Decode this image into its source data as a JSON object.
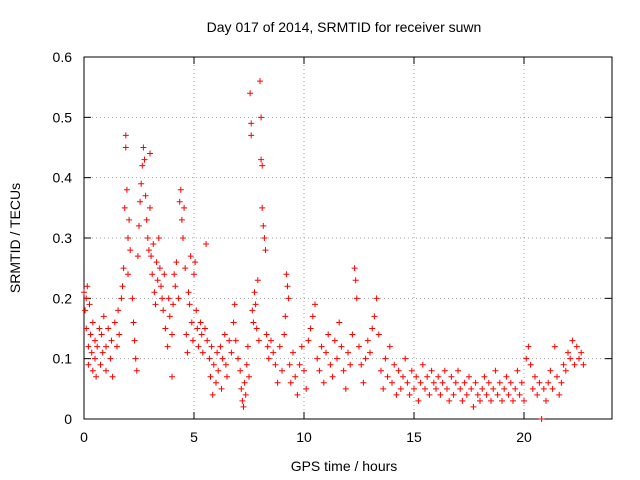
{
  "chart_data": {
    "type": "scatter",
    "title": "Day 017 of 2014, SRMTID for receiver suwn",
    "xlabel": "GPS time / hours",
    "ylabel": "SRMTID / TECUs",
    "xlim": [
      0,
      24
    ],
    "ylim": [
      0,
      0.6
    ],
    "x_ticks": [
      0,
      5,
      10,
      15,
      20
    ],
    "y_ticks": [
      0,
      0.1,
      0.2,
      0.3,
      0.4,
      0.5,
      0.6
    ],
    "x_tick_labels": [
      "0",
      "5",
      "10",
      "15",
      "20"
    ],
    "y_tick_labels": [
      "0",
      "0.1",
      "0.2",
      "0.3",
      "0.4",
      "0.5",
      "0.6"
    ],
    "grid": true,
    "marker": "+",
    "color": "#ff0000",
    "series": [
      {
        "name": "SRMTID",
        "points": [
          [
            0.0,
            0.21
          ],
          [
            0.05,
            0.18
          ],
          [
            0.1,
            0.2
          ],
          [
            0.1,
            0.15
          ],
          [
            0.15,
            0.22
          ],
          [
            0.2,
            0.12
          ],
          [
            0.2,
            0.09
          ],
          [
            0.25,
            0.19
          ],
          [
            0.3,
            0.14
          ],
          [
            0.35,
            0.11
          ],
          [
            0.4,
            0.08
          ],
          [
            0.4,
            0.16
          ],
          [
            0.5,
            0.13
          ],
          [
            0.5,
            0.1
          ],
          [
            0.55,
            0.07
          ],
          [
            0.6,
            0.12
          ],
          [
            0.7,
            0.15
          ],
          [
            0.75,
            0.09
          ],
          [
            0.8,
            0.14
          ],
          [
            0.85,
            0.11
          ],
          [
            0.9,
            0.17
          ],
          [
            1.0,
            0.12
          ],
          [
            1.0,
            0.08
          ],
          [
            1.1,
            0.15
          ],
          [
            1.2,
            0.1
          ],
          [
            1.25,
            0.13
          ],
          [
            1.3,
            0.07
          ],
          [
            1.4,
            0.16
          ],
          [
            1.5,
            0.12
          ],
          [
            1.55,
            0.18
          ],
          [
            1.6,
            0.14
          ],
          [
            1.7,
            0.2
          ],
          [
            1.75,
            0.22
          ],
          [
            1.8,
            0.25
          ],
          [
            1.85,
            0.35
          ],
          [
            1.9,
            0.47
          ],
          [
            1.9,
            0.45
          ],
          [
            1.95,
            0.38
          ],
          [
            2.0,
            0.3
          ],
          [
            2.0,
            0.24
          ],
          [
            2.05,
            0.33
          ],
          [
            2.1,
            0.28
          ],
          [
            2.2,
            0.2
          ],
          [
            2.25,
            0.16
          ],
          [
            2.3,
            0.13
          ],
          [
            2.35,
            0.1
          ],
          [
            2.4,
            0.08
          ],
          [
            2.45,
            0.27
          ],
          [
            2.5,
            0.32
          ],
          [
            2.55,
            0.36
          ],
          [
            2.6,
            0.39
          ],
          [
            2.65,
            0.42
          ],
          [
            2.7,
            0.45
          ],
          [
            2.75,
            0.43
          ],
          [
            2.8,
            0.37
          ],
          [
            2.85,
            0.33
          ],
          [
            2.9,
            0.3
          ],
          [
            2.95,
            0.28
          ],
          [
            3.0,
            0.44
          ],
          [
            3.0,
            0.35
          ],
          [
            3.05,
            0.27
          ],
          [
            3.1,
            0.24
          ],
          [
            3.15,
            0.29
          ],
          [
            3.2,
            0.21
          ],
          [
            3.25,
            0.19
          ],
          [
            3.3,
            0.26
          ],
          [
            3.35,
            0.23
          ],
          [
            3.4,
            0.3
          ],
          [
            3.45,
            0.25
          ],
          [
            3.5,
            0.22
          ],
          [
            3.55,
            0.2
          ],
          [
            3.6,
            0.18
          ],
          [
            3.65,
            0.24
          ],
          [
            3.7,
            0.15
          ],
          [
            3.8,
            0.12
          ],
          [
            3.85,
            0.2
          ],
          [
            3.9,
            0.17
          ],
          [
            4.0,
            0.14
          ],
          [
            4.0,
            0.07
          ],
          [
            4.05,
            0.19
          ],
          [
            4.1,
            0.24
          ],
          [
            4.15,
            0.22
          ],
          [
            4.2,
            0.26
          ],
          [
            4.3,
            0.2
          ],
          [
            4.35,
            0.36
          ],
          [
            4.4,
            0.38
          ],
          [
            4.45,
            0.33
          ],
          [
            4.5,
            0.3
          ],
          [
            4.55,
            0.35
          ],
          [
            4.6,
            0.25
          ],
          [
            4.65,
            0.14
          ],
          [
            4.7,
            0.11
          ],
          [
            4.75,
            0.21
          ],
          [
            4.8,
            0.19
          ],
          [
            4.85,
            0.27
          ],
          [
            4.9,
            0.16
          ],
          [
            4.95,
            0.13
          ],
          [
            5.0,
            0.24
          ],
          [
            5.05,
            0.26
          ],
          [
            5.1,
            0.18
          ],
          [
            5.15,
            0.15
          ],
          [
            5.2,
            0.12
          ],
          [
            5.3,
            0.16
          ],
          [
            5.35,
            0.14
          ],
          [
            5.4,
            0.11
          ],
          [
            5.5,
            0.15
          ],
          [
            5.55,
            0.29
          ],
          [
            5.6,
            0.13
          ],
          [
            5.7,
            0.1
          ],
          [
            5.75,
            0.07
          ],
          [
            5.8,
            0.12
          ],
          [
            5.85,
            0.04
          ],
          [
            5.9,
            0.09
          ],
          [
            6.0,
            0.06
          ],
          [
            6.05,
            0.11
          ],
          [
            6.1,
            0.08
          ],
          [
            6.2,
            0.12
          ],
          [
            6.25,
            0.05
          ],
          [
            6.3,
            0.1
          ],
          [
            6.4,
            0.14
          ],
          [
            6.45,
            0.09
          ],
          [
            6.5,
            0.07
          ],
          [
            6.6,
            0.13
          ],
          [
            6.7,
            0.11
          ],
          [
            6.8,
            0.16
          ],
          [
            6.85,
            0.19
          ],
          [
            6.9,
            0.13
          ],
          [
            7.0,
            0.1
          ],
          [
            7.1,
            0.08
          ],
          [
            7.15,
            0.05
          ],
          [
            7.2,
            0.03
          ],
          [
            7.25,
            0.02
          ],
          [
            7.3,
            0.06
          ],
          [
            7.35,
            0.04
          ],
          [
            7.4,
            0.09
          ],
          [
            7.45,
            0.12
          ],
          [
            7.5,
            0.07
          ],
          [
            7.55,
            0.54
          ],
          [
            7.6,
            0.49
          ],
          [
            7.6,
            0.47
          ],
          [
            7.65,
            0.18
          ],
          [
            7.7,
            0.16
          ],
          [
            7.75,
            0.21
          ],
          [
            7.8,
            0.19
          ],
          [
            7.85,
            0.15
          ],
          [
            7.9,
            0.23
          ],
          [
            7.95,
            0.13
          ],
          [
            8.0,
            0.56
          ],
          [
            8.05,
            0.5
          ],
          [
            8.05,
            0.43
          ],
          [
            8.1,
            0.42
          ],
          [
            8.1,
            0.35
          ],
          [
            8.15,
            0.32
          ],
          [
            8.2,
            0.3
          ],
          [
            8.25,
            0.28
          ],
          [
            8.3,
            0.14
          ],
          [
            8.35,
            0.12
          ],
          [
            8.4,
            0.1
          ],
          [
            8.5,
            0.13
          ],
          [
            8.6,
            0.11
          ],
          [
            8.7,
            0.09
          ],
          [
            8.8,
            0.06
          ],
          [
            8.9,
            0.12
          ],
          [
            9.0,
            0.08
          ],
          [
            9.1,
            0.14
          ],
          [
            9.15,
            0.17
          ],
          [
            9.2,
            0.24
          ],
          [
            9.25,
            0.22
          ],
          [
            9.3,
            0.2
          ],
          [
            9.35,
            0.09
          ],
          [
            9.4,
            0.06
          ],
          [
            9.5,
            0.11
          ],
          [
            9.6,
            0.07
          ],
          [
            9.7,
            0.04
          ],
          [
            9.8,
            0.09
          ],
          [
            9.9,
            0.12
          ],
          [
            10.0,
            0.08
          ],
          [
            10.1,
            0.05
          ],
          [
            10.2,
            0.13
          ],
          [
            10.3,
            0.15
          ],
          [
            10.4,
            0.17
          ],
          [
            10.5,
            0.19
          ],
          [
            10.6,
            0.1
          ],
          [
            10.7,
            0.08
          ],
          [
            10.8,
            0.12
          ],
          [
            10.9,
            0.06
          ],
          [
            11.0,
            0.11
          ],
          [
            11.1,
            0.14
          ],
          [
            11.2,
            0.09
          ],
          [
            11.3,
            0.07
          ],
          [
            11.4,
            0.13
          ],
          [
            11.5,
            0.1
          ],
          [
            11.6,
            0.16
          ],
          [
            11.7,
            0.12
          ],
          [
            11.8,
            0.08
          ],
          [
            11.9,
            0.05
          ],
          [
            12.0,
            0.11
          ],
          [
            12.1,
            0.09
          ],
          [
            12.2,
            0.14
          ],
          [
            12.3,
            0.25
          ],
          [
            12.35,
            0.23
          ],
          [
            12.4,
            0.2
          ],
          [
            12.5,
            0.12
          ],
          [
            12.6,
            0.09
          ],
          [
            12.7,
            0.06
          ],
          [
            12.8,
            0.1
          ],
          [
            12.9,
            0.13
          ],
          [
            13.0,
            0.11
          ],
          [
            13.1,
            0.15
          ],
          [
            13.2,
            0.17
          ],
          [
            13.3,
            0.2
          ],
          [
            13.4,
            0.14
          ],
          [
            13.5,
            0.08
          ],
          [
            13.6,
            0.05
          ],
          [
            13.7,
            0.1
          ],
          [
            13.8,
            0.07
          ],
          [
            13.9,
            0.12
          ],
          [
            14.0,
            0.06
          ],
          [
            14.1,
            0.09
          ],
          [
            14.2,
            0.04
          ],
          [
            14.3,
            0.08
          ],
          [
            14.4,
            0.05
          ],
          [
            14.5,
            0.07
          ],
          [
            14.6,
            0.1
          ],
          [
            14.7,
            0.06
          ],
          [
            14.8,
            0.04
          ],
          [
            14.9,
            0.08
          ],
          [
            15.0,
            0.05
          ],
          [
            15.1,
            0.07
          ],
          [
            15.2,
            0.03
          ],
          [
            15.3,
            0.06
          ],
          [
            15.4,
            0.09
          ],
          [
            15.5,
            0.05
          ],
          [
            15.6,
            0.07
          ],
          [
            15.7,
            0.04
          ],
          [
            15.8,
            0.08
          ],
          [
            15.9,
            0.06
          ],
          [
            16.0,
            0.05
          ],
          [
            16.1,
            0.07
          ],
          [
            16.2,
            0.04
          ],
          [
            16.3,
            0.06
          ],
          [
            16.4,
            0.08
          ],
          [
            16.5,
            0.05
          ],
          [
            16.6,
            0.03
          ],
          [
            16.7,
            0.07
          ],
          [
            16.8,
            0.04
          ],
          [
            16.9,
            0.06
          ],
          [
            17.0,
            0.08
          ],
          [
            17.1,
            0.05
          ],
          [
            17.2,
            0.03
          ],
          [
            17.3,
            0.06
          ],
          [
            17.4,
            0.04
          ],
          [
            17.5,
            0.07
          ],
          [
            17.6,
            0.05
          ],
          [
            17.7,
            0.02
          ],
          [
            17.8,
            0.06
          ],
          [
            17.9,
            0.04
          ],
          [
            18.0,
            0.03
          ],
          [
            18.1,
            0.05
          ],
          [
            18.2,
            0.07
          ],
          [
            18.3,
            0.04
          ],
          [
            18.4,
            0.06
          ],
          [
            18.5,
            0.03
          ],
          [
            18.6,
            0.05
          ],
          [
            18.7,
            0.08
          ],
          [
            18.8,
            0.04
          ],
          [
            18.9,
            0.06
          ],
          [
            19.0,
            0.03
          ],
          [
            19.1,
            0.05
          ],
          [
            19.2,
            0.07
          ],
          [
            19.3,
            0.04
          ],
          [
            19.4,
            0.06
          ],
          [
            19.5,
            0.03
          ],
          [
            19.6,
            0.05
          ],
          [
            19.7,
            0.08
          ],
          [
            19.8,
            0.04
          ],
          [
            19.9,
            0.06
          ],
          [
            20.0,
            0.03
          ],
          [
            20.1,
            0.1
          ],
          [
            20.2,
            0.12
          ],
          [
            20.3,
            0.09
          ],
          [
            20.4,
            0.05
          ],
          [
            20.5,
            0.07
          ],
          [
            20.6,
            0.04
          ],
          [
            20.7,
            0.06
          ],
          [
            20.8,
            0.0
          ],
          [
            20.9,
            0.05
          ],
          [
            21.0,
            0.03
          ],
          [
            21.1,
            0.06
          ],
          [
            21.2,
            0.08
          ],
          [
            21.3,
            0.05
          ],
          [
            21.4,
            0.12
          ],
          [
            21.5,
            0.07
          ],
          [
            21.6,
            0.04
          ],
          [
            21.7,
            0.06
          ],
          [
            21.8,
            0.09
          ],
          [
            21.9,
            0.08
          ],
          [
            22.0,
            0.11
          ],
          [
            22.1,
            0.1
          ],
          [
            22.2,
            0.13
          ],
          [
            22.3,
            0.09
          ],
          [
            22.4,
            0.12
          ],
          [
            22.5,
            0.1
          ],
          [
            22.6,
            0.11
          ],
          [
            22.7,
            0.09
          ]
        ]
      }
    ]
  }
}
